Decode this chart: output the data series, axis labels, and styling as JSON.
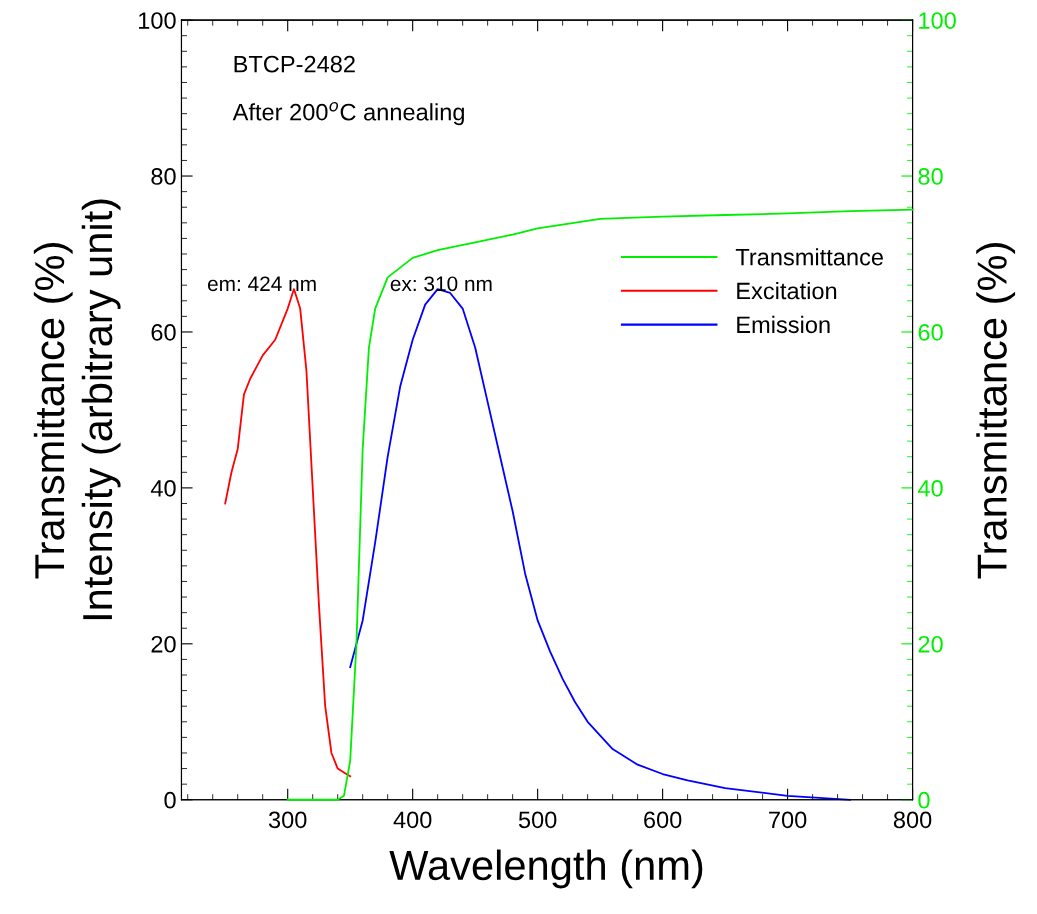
{
  "chart_data": {
    "type": "line",
    "xlabel": "Wavelength (nm)",
    "ylabel": "Transmittance (%)\nIntensity (arbitrary unit)",
    "y2label": "Transmittance (%)",
    "xlim": [
      215,
      800
    ],
    "xticks": [
      300,
      400,
      500,
      600,
      700,
      800
    ],
    "ylim": [
      0,
      100
    ],
    "yticks": [
      0,
      20,
      40,
      60,
      80,
      100
    ],
    "y2lim": [
      0,
      100
    ],
    "y2ticks": [
      0,
      20,
      40,
      60,
      80,
      100
    ],
    "legend": "right",
    "grid": false,
    "marker": "none",
    "line_style": "solid",
    "annotations": [
      "BTCP-2482",
      "After 200$^{o}$C annealing",
      "em: 424 nm",
      "ex: 310 nm"
    ],
    "series": [
      {
        "name": "Transmittance",
        "color": "#00ee00",
        "axis": "y2",
        "x": [
          300,
          340,
          345,
          350,
          355,
          360,
          365,
          370,
          380,
          400,
          420,
          450,
          480,
          500,
          550,
          600,
          650,
          700,
          750,
          800
        ],
        "values": [
          0,
          0,
          0.5,
          5,
          20,
          45,
          58,
          63,
          67,
          69.5,
          70.5,
          71.5,
          72.5,
          73.3,
          74.5,
          74.8,
          75,
          75.2,
          75.5,
          75.7
        ]
      },
      {
        "name": "Excitation",
        "color": "#ff0000",
        "x": [
          250,
          255,
          260,
          265,
          270,
          280,
          290,
          300,
          305,
          310,
          315,
          320,
          325,
          330,
          335,
          340,
          345,
          350
        ],
        "values": [
          38,
          42,
          45,
          52,
          54,
          57,
          59,
          63,
          65.5,
          63,
          55,
          40,
          25,
          12,
          6,
          4,
          3.5,
          3
        ]
      },
      {
        "name": "Emission",
        "color": "#0000ff",
        "x": [
          350,
          360,
          370,
          380,
          390,
          400,
          410,
          420,
          430,
          440,
          450,
          460,
          470,
          480,
          490,
          500,
          510,
          520,
          530,
          540,
          560,
          580,
          600,
          620,
          650,
          700,
          750
        ],
        "values": [
          17,
          23,
          33,
          44,
          53,
          59,
          63.5,
          65.5,
          65,
          63,
          58,
          51,
          44,
          37,
          29,
          23,
          19,
          15.5,
          12.5,
          10,
          6.5,
          4.5,
          3.3,
          2.5,
          1.5,
          0.5,
          0
        ]
      }
    ]
  }
}
